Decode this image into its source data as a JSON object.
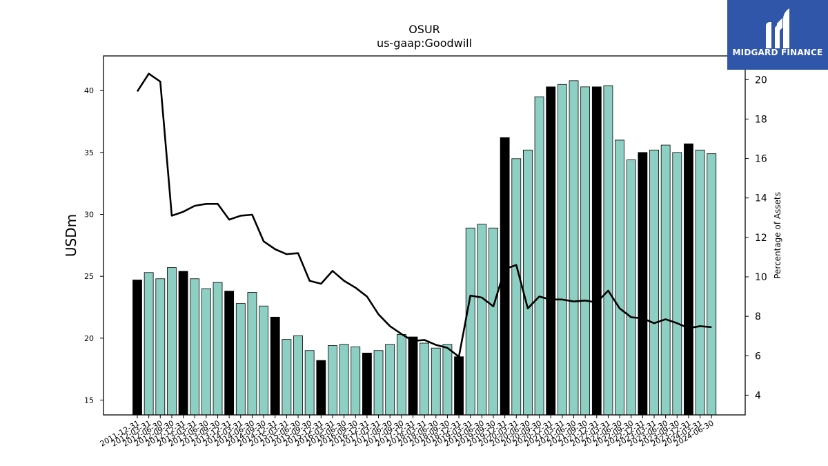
{
  "brand": {
    "name": "MIDGARD FINANCE",
    "bg_color": "#2f56a8"
  },
  "chart_data": {
    "type": "bar",
    "title": "OSUR",
    "subtitle": "us-gaap:Goodwill",
    "ylabel": "USDm",
    "y2label": "Percentage of Assets",
    "ylim": [
      13.8,
      42.8
    ],
    "y2lim": [
      3.0,
      21.2
    ],
    "yticks": [
      15,
      20,
      25,
      30,
      35,
      40
    ],
    "y2ticks": [
      4,
      6,
      8,
      10,
      12,
      14,
      16,
      18,
      20
    ],
    "bar_color": "#8ecfc3",
    "highlight_color": "#000000",
    "line_color": "#000000",
    "categories": [
      "2011-12-31",
      "2012-03-31",
      "2012-06-30",
      "2012-09-30",
      "2012-12-31",
      "2013-03-31",
      "2013-06-30",
      "2013-09-30",
      "2013-12-31",
      "2014-03-31",
      "2014-06-30",
      "2014-09-30",
      "2014-12-31",
      "2015-03-31",
      "2015-06-30",
      "2015-09-30",
      "2015-12-31",
      "2016-03-31",
      "2016-06-30",
      "2016-09-30",
      "2016-12-31",
      "2017-03-31",
      "2017-06-30",
      "2017-09-30",
      "2017-12-31",
      "2018-03-31",
      "2018-06-30",
      "2018-09-30",
      "2018-12-31",
      "2019-03-31",
      "2019-06-30",
      "2019-09-30",
      "2019-12-31",
      "2020-03-31",
      "2020-06-30",
      "2020-09-30",
      "2020-12-31",
      "2021-03-31",
      "2021-06-30",
      "2021-09-30",
      "2021-12-31",
      "2022-03-31",
      "2022-06-30",
      "2022-09-30",
      "2022-12-31",
      "2023-03-31",
      "2023-06-30",
      "2023-09-30",
      "2023-12-31",
      "2024-03-31",
      "2024-06-30"
    ],
    "highlight": [
      true,
      false,
      false,
      false,
      true,
      false,
      false,
      false,
      true,
      false,
      false,
      false,
      true,
      false,
      false,
      false,
      true,
      false,
      false,
      false,
      true,
      false,
      false,
      false,
      true,
      false,
      false,
      false,
      true,
      false,
      false,
      false,
      true,
      false,
      false,
      false,
      true,
      false,
      false,
      false,
      true,
      false,
      false,
      false,
      true,
      false,
      false,
      false,
      true,
      false,
      false
    ],
    "series": [
      {
        "axis": "left",
        "values": [
          24.7,
          25.3,
          24.8,
          25.7,
          25.4,
          24.8,
          24.0,
          24.5,
          23.8,
          22.8,
          23.7,
          22.6,
          21.7,
          19.9,
          20.2,
          19.0,
          18.2,
          19.4,
          19.5,
          19.3,
          18.8,
          19.0,
          19.5,
          20.3,
          20.1,
          19.6,
          19.2,
          19.5,
          18.5,
          28.9,
          29.2,
          28.9,
          36.2,
          34.5,
          35.2,
          39.5,
          40.3,
          40.5,
          40.8,
          40.3,
          40.3,
          40.4,
          36.0,
          34.4,
          35.0,
          35.2,
          35.6,
          35.0,
          35.7,
          35.2,
          34.9
        ]
      },
      {
        "axis": "right",
        "values": [
          19.4,
          20.3,
          19.9,
          13.1,
          13.3,
          13.6,
          13.7,
          13.7,
          12.9,
          13.1,
          13.15,
          11.8,
          11.4,
          11.15,
          11.2,
          9.8,
          9.65,
          10.3,
          9.8,
          9.45,
          9.0,
          8.1,
          7.5,
          7.1,
          6.75,
          6.8,
          6.55,
          6.4,
          5.95,
          9.05,
          8.95,
          8.5,
          10.4,
          10.6,
          8.4,
          9.0,
          8.85,
          8.85,
          8.75,
          8.8,
          8.7,
          9.3,
          8.4,
          7.95,
          7.9,
          7.65,
          7.85,
          7.65,
          7.4,
          7.5,
          7.45
        ]
      }
    ]
  }
}
